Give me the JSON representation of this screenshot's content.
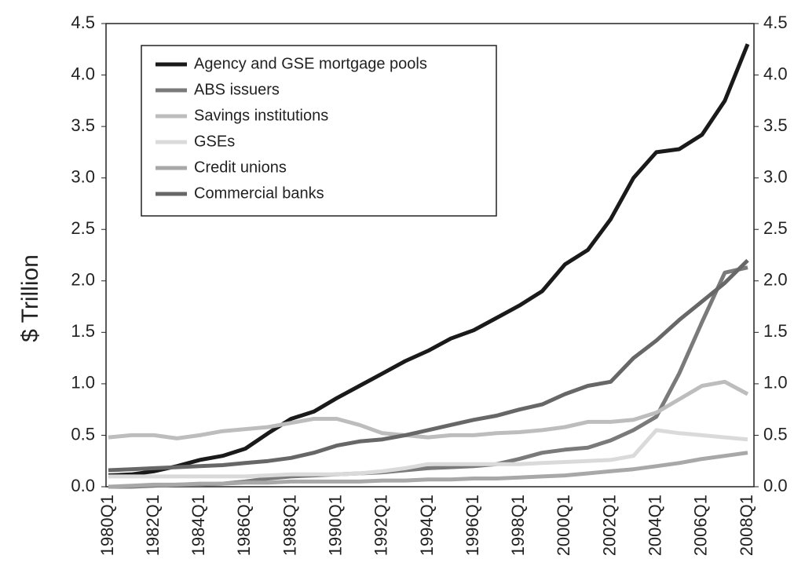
{
  "chart_data": {
    "type": "line",
    "y_label": "$ Trillion",
    "categories": [
      "1980Q1",
      null,
      "1982Q1",
      null,
      "1984Q1",
      null,
      "1986Q1",
      null,
      "1988Q1",
      null,
      "1990Q1",
      null,
      "1992Q1",
      null,
      "1994Q1",
      null,
      "1996Q1",
      null,
      "1998Q1",
      null,
      "2000Q1",
      null,
      "2002Q1",
      null,
      "2004Q1",
      null,
      "2006Q1",
      null,
      "2008Q1"
    ],
    "series": [
      {
        "name": "Agency and GSE mortgage pools",
        "color": "#1a1a1a",
        "values": [
          0.11,
          0.12,
          0.15,
          0.2,
          0.26,
          0.3,
          0.37,
          0.52,
          0.66,
          0.73,
          0.86,
          0.98,
          1.1,
          1.22,
          1.32,
          1.44,
          1.52,
          1.64,
          1.76,
          1.9,
          2.16,
          2.3,
          2.6,
          3.0,
          3.25,
          3.28,
          3.42,
          3.75,
          4.3
        ]
      },
      {
        "name": "ABS issuers",
        "color": "#7a7a7a",
        "values": [
          0.0,
          0.0,
          0.01,
          0.02,
          0.02,
          0.03,
          0.05,
          0.08,
          0.1,
          0.11,
          0.12,
          0.13,
          0.14,
          0.16,
          0.18,
          0.19,
          0.2,
          0.22,
          0.27,
          0.33,
          0.36,
          0.38,
          0.45,
          0.55,
          0.68,
          1.1,
          1.6,
          2.08,
          2.13
        ]
      },
      {
        "name": "Savings institutions",
        "color": "#bdbdbd",
        "values": [
          0.48,
          0.5,
          0.5,
          0.47,
          0.5,
          0.54,
          0.56,
          0.58,
          0.62,
          0.66,
          0.66,
          0.6,
          0.52,
          0.5,
          0.48,
          0.5,
          0.5,
          0.52,
          0.53,
          0.55,
          0.58,
          0.63,
          0.63,
          0.65,
          0.72,
          0.85,
          0.98,
          1.02,
          0.9
        ]
      },
      {
        "name": "GSEs",
        "color": "#dadada",
        "values": [
          0.1,
          0.1,
          0.1,
          0.1,
          0.1,
          0.1,
          0.1,
          0.11,
          0.12,
          0.12,
          0.12,
          0.13,
          0.15,
          0.18,
          0.22,
          0.22,
          0.22,
          0.22,
          0.22,
          0.23,
          0.24,
          0.25,
          0.26,
          0.3,
          0.55,
          0.52,
          0.5,
          0.48,
          0.46
        ]
      },
      {
        "name": "Credit unions",
        "color": "#a8a8a8",
        "values": [
          0.0,
          0.01,
          0.02,
          0.02,
          0.03,
          0.03,
          0.04,
          0.04,
          0.05,
          0.05,
          0.05,
          0.05,
          0.06,
          0.06,
          0.07,
          0.07,
          0.08,
          0.08,
          0.09,
          0.1,
          0.11,
          0.13,
          0.15,
          0.17,
          0.2,
          0.23,
          0.27,
          0.3,
          0.33
        ]
      },
      {
        "name": "Commercial banks",
        "color": "#676767",
        "values": [
          0.16,
          0.17,
          0.18,
          0.19,
          0.2,
          0.21,
          0.23,
          0.25,
          0.28,
          0.33,
          0.4,
          0.44,
          0.46,
          0.5,
          0.55,
          0.6,
          0.65,
          0.69,
          0.75,
          0.8,
          0.9,
          0.98,
          1.02,
          1.25,
          1.42,
          1.62,
          1.8,
          1.98,
          2.2
        ]
      }
    ],
    "ylim": [
      0,
      4.5
    ],
    "yticks": [
      {
        "value": 0,
        "label": "0.0"
      },
      {
        "value": 0.5,
        "label": "0.5"
      },
      {
        "value": 1,
        "label": "1.0"
      },
      {
        "value": 1.5,
        "label": "1.5"
      },
      {
        "value": 2,
        "label": "2.0"
      },
      {
        "value": 2.5,
        "label": "2.5"
      },
      {
        "value": 3,
        "label": "3.0"
      },
      {
        "value": 3.5,
        "label": "3.5"
      },
      {
        "value": 4,
        "label": "4.0"
      },
      {
        "value": 4.5,
        "label": "4.5"
      }
    ],
    "y2lim": [
      0,
      4.5
    ],
    "y2ticks": [
      {
        "value": 0,
        "label": "0.0"
      },
      {
        "value": 0.5,
        "label": "0.5"
      },
      {
        "value": 1,
        "label": "1.0"
      },
      {
        "value": 1.5,
        "label": "1.5"
      },
      {
        "value": 2,
        "label": "2.0"
      },
      {
        "value": 2.5,
        "label": "2.5"
      },
      {
        "value": 3,
        "label": "3.0"
      },
      {
        "value": 3.5,
        "label": "3.5"
      },
      {
        "value": 4,
        "label": "4.0"
      },
      {
        "value": 4.5,
        "label": "4.5"
      }
    ],
    "grid": false,
    "legend": "upper left"
  }
}
